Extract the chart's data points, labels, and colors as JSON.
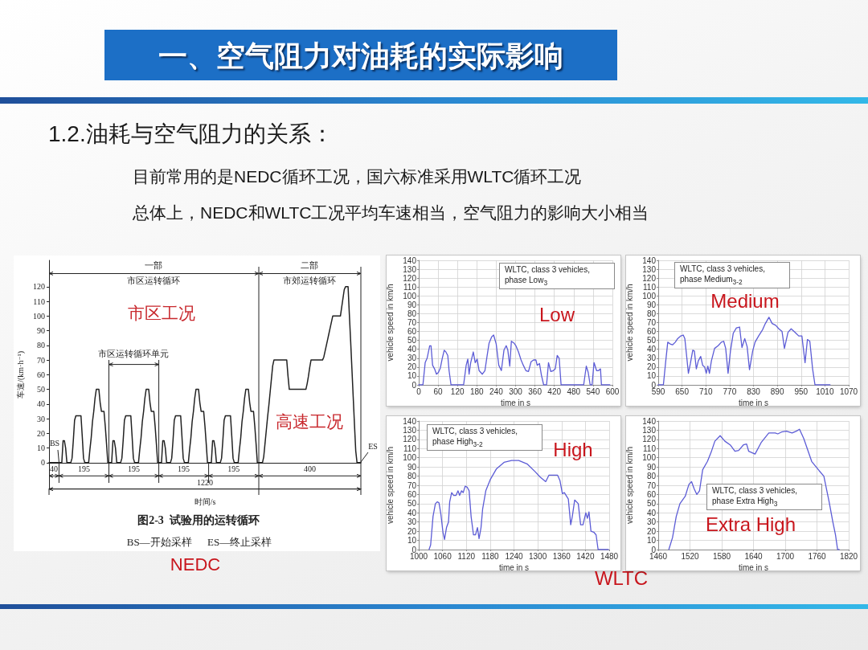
{
  "chart_data": [
    {
      "type": "other",
      "title": "一、空气阻力对油耗的实际影响",
      "subtitle": "1.2.油耗与空气阻力的关系：",
      "annotations": [
        "目前常用的是NEDC循环工况，国六标准采用WLTC循环工况",
        "总体上，NEDC和WLTC工况平均车速相当，空气阻力的影响大小相当"
      ]
    },
    {
      "type": "line",
      "xlabel": "时间/s",
      "ylabel": "车速/(km·h⁻¹)",
      "color": "#222222",
      "categories": [
        null,
        null,
        null,
        null,
        null,
        null,
        null,
        null,
        null,
        null,
        null,
        null,
        null,
        null,
        null,
        null,
        null,
        null,
        null,
        null,
        null,
        null,
        null,
        null,
        null,
        null,
        null,
        null,
        null,
        null,
        null,
        null,
        null,
        null,
        null,
        null,
        null,
        null,
        null,
        null,
        null,
        null,
        null,
        null,
        null,
        null,
        null,
        null,
        null,
        null,
        null,
        null,
        null,
        null,
        null,
        null,
        null,
        null,
        null,
        null,
        null,
        null,
        null,
        null,
        null,
        null,
        null,
        null,
        null,
        null,
        null,
        null,
        null,
        null,
        null,
        null,
        null,
        null,
        null,
        null,
        null,
        null,
        null,
        null,
        null,
        null,
        null,
        null,
        null,
        null,
        null,
        null,
        null,
        null,
        null,
        null,
        null,
        null,
        null,
        null,
        null,
        null,
        null,
        null,
        null,
        null,
        null,
        null,
        null,
        null,
        null,
        null,
        null,
        null,
        null,
        null,
        null,
        null,
        null,
        null,
        null,
        null,
        null,
        null,
        null,
        null,
        null,
        null,
        null,
        null,
        null,
        null,
        null,
        null,
        null,
        null,
        null,
        null,
        null,
        null,
        null,
        null,
        null,
        null,
        null,
        null,
        null,
        null,
        null,
        null,
        null,
        null,
        null,
        null,
        null,
        null,
        null,
        null,
        null,
        null,
        null,
        null,
        null,
        null,
        null,
        null,
        null,
        null,
        null,
        null,
        null,
        null,
        null,
        null,
        null,
        null,
        null,
        null,
        null,
        null,
        null,
        null,
        null,
        null,
        null,
        null,
        null,
        null,
        null,
        null,
        null,
        null,
        null,
        null,
        null,
        null,
        null,
        null,
        null,
        null,
        null,
        null,
        null,
        null,
        null,
        null,
        null,
        null,
        null,
        null,
        null,
        null,
        null,
        null,
        null,
        null,
        null,
        null,
        null,
        null,
        null,
        null,
        null,
        null,
        null,
        null,
        null,
        null,
        null,
        null,
        null,
        null,
        null,
        null,
        null,
        null,
        null,
        null,
        null,
        null,
        null,
        null,
        null,
        null,
        null
      ],
      "values": [
        0,
        0,
        0,
        0,
        0,
        0,
        0,
        0,
        0,
        0,
        0,
        15,
        15,
        10,
        0,
        0,
        0,
        0,
        3,
        15,
        29,
        32,
        32,
        32,
        32,
        32,
        18,
        3,
        0,
        0,
        0,
        0,
        9,
        17,
        28,
        35,
        44,
        50,
        50,
        50,
        41,
        35,
        35,
        35,
        25,
        13,
        0,
        0,
        0,
        0,
        15,
        15,
        10,
        0,
        0,
        0,
        0,
        3,
        15,
        29,
        32,
        32,
        32,
        32,
        32,
        18,
        3,
        0,
        0,
        0,
        0,
        9,
        17,
        28,
        35,
        44,
        50,
        50,
        50,
        41,
        35,
        35,
        35,
        25,
        13,
        0,
        0,
        0,
        0,
        15,
        15,
        10,
        0,
        0,
        0,
        0,
        3,
        15,
        29,
        32,
        32,
        32,
        32,
        32,
        18,
        3,
        0,
        0,
        0,
        0,
        9,
        17,
        28,
        35,
        44,
        50,
        50,
        50,
        41,
        35,
        35,
        35,
        25,
        13,
        0,
        0,
        0,
        0,
        15,
        15,
        10,
        0,
        0,
        0,
        0,
        3,
        15,
        29,
        32,
        32,
        32,
        32,
        32,
        18,
        3,
        0,
        0,
        0,
        0,
        9,
        17,
        28,
        35,
        44,
        50,
        50,
        50,
        41,
        35,
        35,
        35,
        25,
        13,
        0,
        0,
        0,
        0,
        0,
        4,
        13,
        22,
        31,
        39,
        48,
        57,
        66,
        70,
        70,
        70,
        70,
        70,
        70,
        70,
        70,
        70,
        70,
        70,
        59,
        50,
        50,
        50,
        50,
        50,
        50,
        50,
        50,
        50,
        50,
        50,
        50,
        50,
        50,
        54,
        59,
        65,
        70,
        70,
        70,
        70,
        70,
        70,
        70,
        70,
        70,
        70,
        72,
        76,
        80,
        84,
        88,
        92,
        96,
        100,
        100,
        100,
        100,
        100,
        100,
        100,
        106,
        112,
        118,
        120,
        120,
        120,
        101,
        83,
        64,
        45,
        26,
        8,
        0,
        0,
        0,
        0
      ],
      "ylim": [
        -18,
        138
      ],
      "yticks": [
        0,
        10,
        20,
        30,
        40,
        50,
        60,
        70,
        80,
        90,
        100,
        110,
        120
      ],
      "tick_labels": "y",
      "ref_lines": [
        {
          "axis": "y",
          "value": 0
        },
        {
          "axis": "y",
          "value": 129
        }
      ],
      "annotations": [
        "一部",
        "二部",
        "市区运转循环",
        "市郊运转循环",
        "市区运转循环单元",
        "市区工况",
        "高速工况",
        "BS",
        "ES",
        "40",
        "195",
        "195",
        "195",
        "195",
        "400",
        "1220",
        "图2-3  试验用的运转循环",
        "BS—开始采样      ES—终止采样",
        "NEDC"
      ]
    },
    {
      "type": "line",
      "title": "WLTC, class 3 vehicles, phase Low$_{3}$",
      "xlabel": "time in s",
      "ylabel": "vehicle speed in km/h",
      "color": "#5c5cd6",
      "x": [
        0,
        13,
        20,
        26,
        34,
        38,
        43,
        49,
        55,
        61,
        67,
        73,
        79,
        84,
        90,
        94,
        100,
        139,
        147,
        152,
        156,
        161,
        169,
        175,
        181,
        187,
        197,
        205,
        212,
        218,
        226,
        232,
        240,
        248,
        256,
        264,
        271,
        276,
        282,
        287,
        295,
        301,
        309,
        317,
        324,
        332,
        340,
        348,
        356,
        363,
        367,
        374,
        380,
        387,
        396,
        402,
        409,
        417,
        423,
        429,
        435,
        441,
        511,
        519,
        525,
        531,
        537,
        543,
        551,
        557,
        563,
        566,
        592
      ],
      "values": [
        0,
        0,
        25,
        30,
        44,
        44,
        22,
        18,
        12,
        14,
        19,
        30,
        39,
        37,
        33,
        16,
        0,
        0,
        22,
        29,
        12,
        25,
        37,
        25,
        29,
        16,
        12,
        16,
        33,
        47,
        54,
        56,
        46,
        22,
        16,
        39,
        44,
        39,
        21,
        49,
        47,
        44,
        37,
        28,
        22,
        16,
        15,
        26,
        28,
        28,
        22,
        24,
        11,
        0,
        0,
        25,
        15,
        16,
        18,
        33,
        30,
        0,
        0,
        21,
        14,
        0,
        0,
        25,
        16,
        16,
        18,
        0,
        0
      ],
      "xlim": [
        0,
        600
      ],
      "xticks": [
        0,
        60,
        120,
        180,
        240,
        300,
        360,
        420,
        480,
        540,
        600
      ],
      "ylim": [
        0,
        140
      ],
      "yticks": [
        0,
        10,
        20,
        30,
        40,
        50,
        60,
        70,
        80,
        90,
        100,
        110,
        120,
        130,
        140
      ],
      "grid": true,
      "annotations": [
        "Low"
      ]
    },
    {
      "type": "line",
      "title": "WLTC, class 3 vehicles, phase Medium$_{3-2}$",
      "xlabel": "time in s",
      "ylabel": "vehicle speed in km/h",
      "color": "#5c5cd6",
      "x": [
        590,
        603,
        609,
        614,
        620,
        626,
        633,
        639,
        647,
        653,
        657,
        661,
        666,
        671,
        677,
        681,
        686,
        691,
        697,
        702,
        707,
        711,
        715,
        719,
        724,
        732,
        741,
        749,
        755,
        760,
        766,
        772,
        779,
        787,
        795,
        801,
        808,
        814,
        820,
        828,
        834,
        843,
        853,
        860,
        869,
        877,
        886,
        894,
        902,
        908,
        917,
        925,
        935,
        944,
        952,
        960,
        966,
        972,
        979,
        985,
        1023
      ],
      "values": [
        0,
        0,
        27,
        48,
        46,
        45,
        48,
        52,
        55,
        56,
        52,
        35,
        13,
        24,
        39,
        38,
        18,
        27,
        32,
        22,
        20,
        13,
        21,
        13,
        27,
        41,
        44,
        48,
        49,
        41,
        13,
        38,
        58,
        64,
        65,
        42,
        52,
        43,
        17,
        38,
        48,
        55,
        62,
        69,
        76,
        69,
        67,
        63,
        60,
        41,
        59,
        63,
        59,
        55,
        55,
        25,
        51,
        49,
        18,
        0,
        0
      ],
      "xlim": [
        590,
        1070
      ],
      "xticks": [
        590,
        650,
        710,
        770,
        830,
        890,
        950,
        1010,
        1070
      ],
      "ylim": [
        0,
        140
      ],
      "yticks": [
        0,
        10,
        20,
        30,
        40,
        50,
        60,
        70,
        80,
        90,
        100,
        110,
        120,
        130,
        140
      ],
      "grid": true,
      "annotations": [
        "Medium"
      ]
    },
    {
      "type": "line",
      "title": "WLTC, class 3 vehicles, phase High$_{3-2}$",
      "xlabel": "time in s",
      "ylabel": "vehicle speed in km/h",
      "color": "#5c5cd6",
      "x": [
        1026,
        1030,
        1036,
        1042,
        1047,
        1051,
        1056,
        1061,
        1065,
        1070,
        1075,
        1078,
        1083,
        1088,
        1094,
        1099,
        1103,
        1108,
        1112,
        1117,
        1122,
        1127,
        1132,
        1138,
        1143,
        1148,
        1152,
        1157,
        1161,
        1169,
        1180,
        1196,
        1215,
        1234,
        1252,
        1274,
        1293,
        1306,
        1320,
        1328,
        1339,
        1350,
        1356,
        1362,
        1367,
        1377,
        1383,
        1387,
        1393,
        1402,
        1408,
        1414,
        1421,
        1425,
        1429,
        1434,
        1441,
        1447,
        1452,
        1478
      ],
      "values": [
        0,
        5,
        36,
        50,
        52,
        51,
        38,
        19,
        11,
        24,
        30,
        52,
        62,
        59,
        59,
        64,
        59,
        64,
        62,
        69,
        68,
        64,
        36,
        16,
        16,
        24,
        12,
        24,
        44,
        64,
        76,
        88,
        95,
        97,
        97,
        93,
        85,
        79,
        74,
        81,
        81,
        81,
        75,
        61,
        62,
        55,
        27,
        36,
        54,
        50,
        27,
        27,
        40,
        34,
        41,
        20,
        19,
        16,
        0,
        0
      ],
      "xlim": [
        1000,
        1480
      ],
      "xticks": [
        1000,
        1060,
        1120,
        1180,
        1240,
        1300,
        1360,
        1420,
        1480
      ],
      "ylim": [
        0,
        140
      ],
      "yticks": [
        0,
        10,
        20,
        30,
        40,
        50,
        60,
        70,
        80,
        90,
        100,
        110,
        120,
        130,
        140
      ],
      "grid": true,
      "annotations": [
        "High",
        "WLTC"
      ]
    },
    {
      "type": "line",
      "title": "WLTC, class 3 vehicles, phase Extra High$_{3}$",
      "xlabel": "time in s",
      "ylabel": "vehicle speed in km/h",
      "color": "#5c5cd6",
      "x": [
        1480,
        1487,
        1494,
        1501,
        1511,
        1518,
        1523,
        1528,
        1533,
        1538,
        1544,
        1553,
        1560,
        1567,
        1577,
        1586,
        1596,
        1605,
        1612,
        1621,
        1627,
        1631,
        1643,
        1655,
        1669,
        1681,
        1686,
        1693,
        1702,
        1713,
        1721,
        1727,
        1735,
        1750,
        1764,
        1773,
        1783,
        1790,
        1795,
        1799,
        1802
      ],
      "values": [
        0,
        13,
        36,
        50,
        58,
        71,
        74,
        66,
        60,
        64,
        87,
        96,
        106,
        118,
        124,
        118,
        114,
        107,
        108,
        114,
        115,
        107,
        104,
        117,
        127,
        127,
        126,
        128,
        129,
        127,
        129,
        131,
        121,
        96,
        86,
        80,
        52,
        30,
        16,
        0,
        0
      ],
      "xlim": [
        1460,
        1820
      ],
      "xticks": [
        1460,
        1520,
        1580,
        1640,
        1700,
        1760,
        1820
      ],
      "ylim": [
        0,
        140
      ],
      "yticks": [
        0,
        10,
        20,
        30,
        40,
        50,
        60,
        70,
        80,
        90,
        100,
        110,
        120,
        130,
        140
      ],
      "grid": true,
      "annotations": [
        "Extra High"
      ]
    }
  ]
}
